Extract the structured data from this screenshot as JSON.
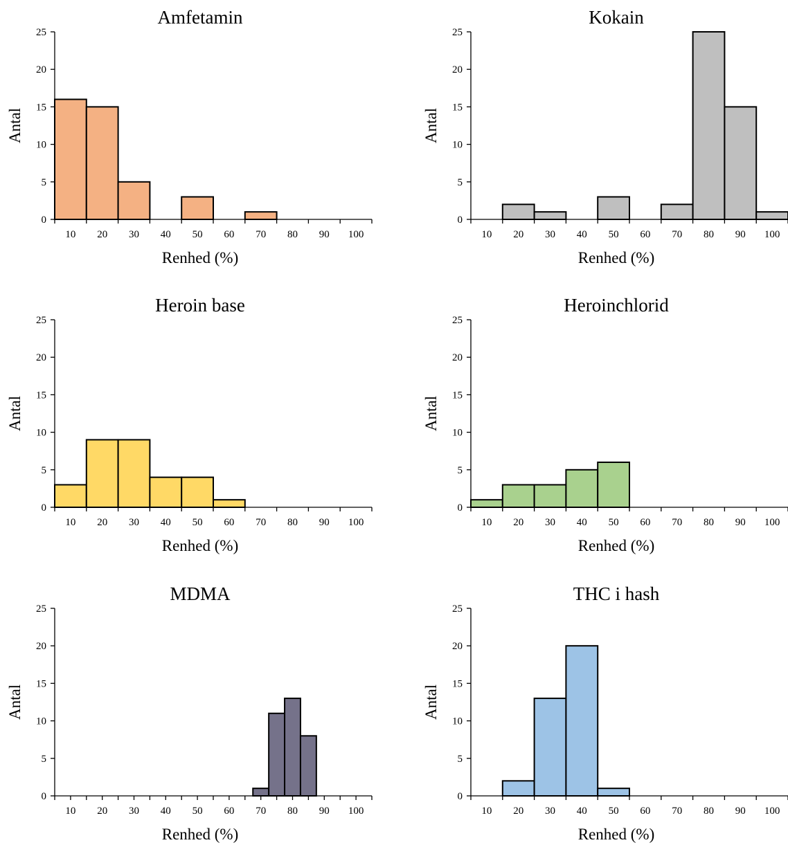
{
  "chart_data": [
    {
      "type": "bar",
      "title": "Amfetamin",
      "xlabel": "Renhed (%)",
      "ylabel": "Antal",
      "ylim": [
        0,
        25
      ],
      "yticks": [
        "0",
        "5",
        "10",
        "15",
        "20",
        "25"
      ],
      "xticks": [
        "10",
        "20",
        "30",
        "40",
        "50",
        "60",
        "70",
        "80",
        "90",
        "100"
      ],
      "xlim": [
        5,
        105
      ],
      "bin_width": 10,
      "color": "#F4B183",
      "bins": [
        {
          "x": 10,
          "value": 16
        },
        {
          "x": 20,
          "value": 15
        },
        {
          "x": 30,
          "value": 5
        },
        {
          "x": 50,
          "value": 3
        },
        {
          "x": 70,
          "value": 1
        }
      ]
    },
    {
      "type": "bar",
      "title": "Kokain",
      "xlabel": "Renhed (%)",
      "ylabel": "Antal",
      "ylim": [
        0,
        25
      ],
      "yticks": [
        "0",
        "5",
        "10",
        "15",
        "20",
        "25"
      ],
      "xticks": [
        "10",
        "20",
        "30",
        "40",
        "50",
        "60",
        "70",
        "80",
        "90",
        "100"
      ],
      "xlim": [
        5,
        105
      ],
      "bin_width": 10,
      "color": "#BFBFBF",
      "bins": [
        {
          "x": 20,
          "value": 2
        },
        {
          "x": 30,
          "value": 1
        },
        {
          "x": 50,
          "value": 3
        },
        {
          "x": 70,
          "value": 2
        },
        {
          "x": 80,
          "value": 25
        },
        {
          "x": 90,
          "value": 15
        },
        {
          "x": 100,
          "value": 1
        }
      ]
    },
    {
      "type": "bar",
      "title": "Heroin base",
      "xlabel": "Renhed (%)",
      "ylabel": "Antal",
      "ylim": [
        0,
        25
      ],
      "yticks": [
        "0",
        "5",
        "10",
        "15",
        "20",
        "25"
      ],
      "xticks": [
        "10",
        "20",
        "30",
        "40",
        "50",
        "60",
        "70",
        "80",
        "90",
        "100"
      ],
      "xlim": [
        5,
        105
      ],
      "bin_width": 10,
      "color": "#FFD966",
      "bins": [
        {
          "x": 10,
          "value": 3
        },
        {
          "x": 20,
          "value": 9
        },
        {
          "x": 30,
          "value": 9
        },
        {
          "x": 40,
          "value": 4
        },
        {
          "x": 50,
          "value": 4
        },
        {
          "x": 60,
          "value": 1
        }
      ]
    },
    {
      "type": "bar",
      "title": "Heroinchlorid",
      "xlabel": "Renhed (%)",
      "ylabel": "Antal",
      "ylim": [
        0,
        25
      ],
      "yticks": [
        "0",
        "5",
        "10",
        "15",
        "20",
        "25"
      ],
      "xticks": [
        "10",
        "20",
        "30",
        "40",
        "50",
        "60",
        "70",
        "80",
        "90",
        "100"
      ],
      "xlim": [
        5,
        105
      ],
      "bin_width": 10,
      "color": "#A9D18E",
      "bins": [
        {
          "x": 10,
          "value": 1
        },
        {
          "x": 20,
          "value": 3
        },
        {
          "x": 30,
          "value": 3
        },
        {
          "x": 40,
          "value": 5
        },
        {
          "x": 50,
          "value": 6
        }
      ]
    },
    {
      "type": "bar",
      "title": "MDMA",
      "xlabel": "Renhed (%)",
      "ylabel": "Antal",
      "ylim": [
        0,
        25
      ],
      "yticks": [
        "0",
        "5",
        "10",
        "15",
        "20",
        "25"
      ],
      "xticks": [
        "10",
        "20",
        "30",
        "40",
        "50",
        "60",
        "70",
        "80",
        "90",
        "100"
      ],
      "xlim": [
        5,
        105
      ],
      "bin_width": 5,
      "minor_ticks": true,
      "color": "#75728A",
      "bins": [
        {
          "x": 70,
          "value": 1
        },
        {
          "x": 75,
          "value": 11
        },
        {
          "x": 80,
          "value": 13
        },
        {
          "x": 85,
          "value": 8
        }
      ]
    },
    {
      "type": "bar",
      "title": "THC i hash",
      "xlabel": "Renhed (%)",
      "ylabel": "Antal",
      "ylim": [
        0,
        25
      ],
      "yticks": [
        "0",
        "5",
        "10",
        "15",
        "20",
        "25"
      ],
      "xticks": [
        "10",
        "20",
        "30",
        "40",
        "50",
        "60",
        "70",
        "80",
        "90",
        "100"
      ],
      "xlim": [
        5,
        105
      ],
      "bin_width": 10,
      "color": "#9DC3E6",
      "bins": [
        {
          "x": 20,
          "value": 2
        },
        {
          "x": 30,
          "value": 13
        },
        {
          "x": 40,
          "value": 20
        },
        {
          "x": 50,
          "value": 1
        }
      ]
    }
  ]
}
